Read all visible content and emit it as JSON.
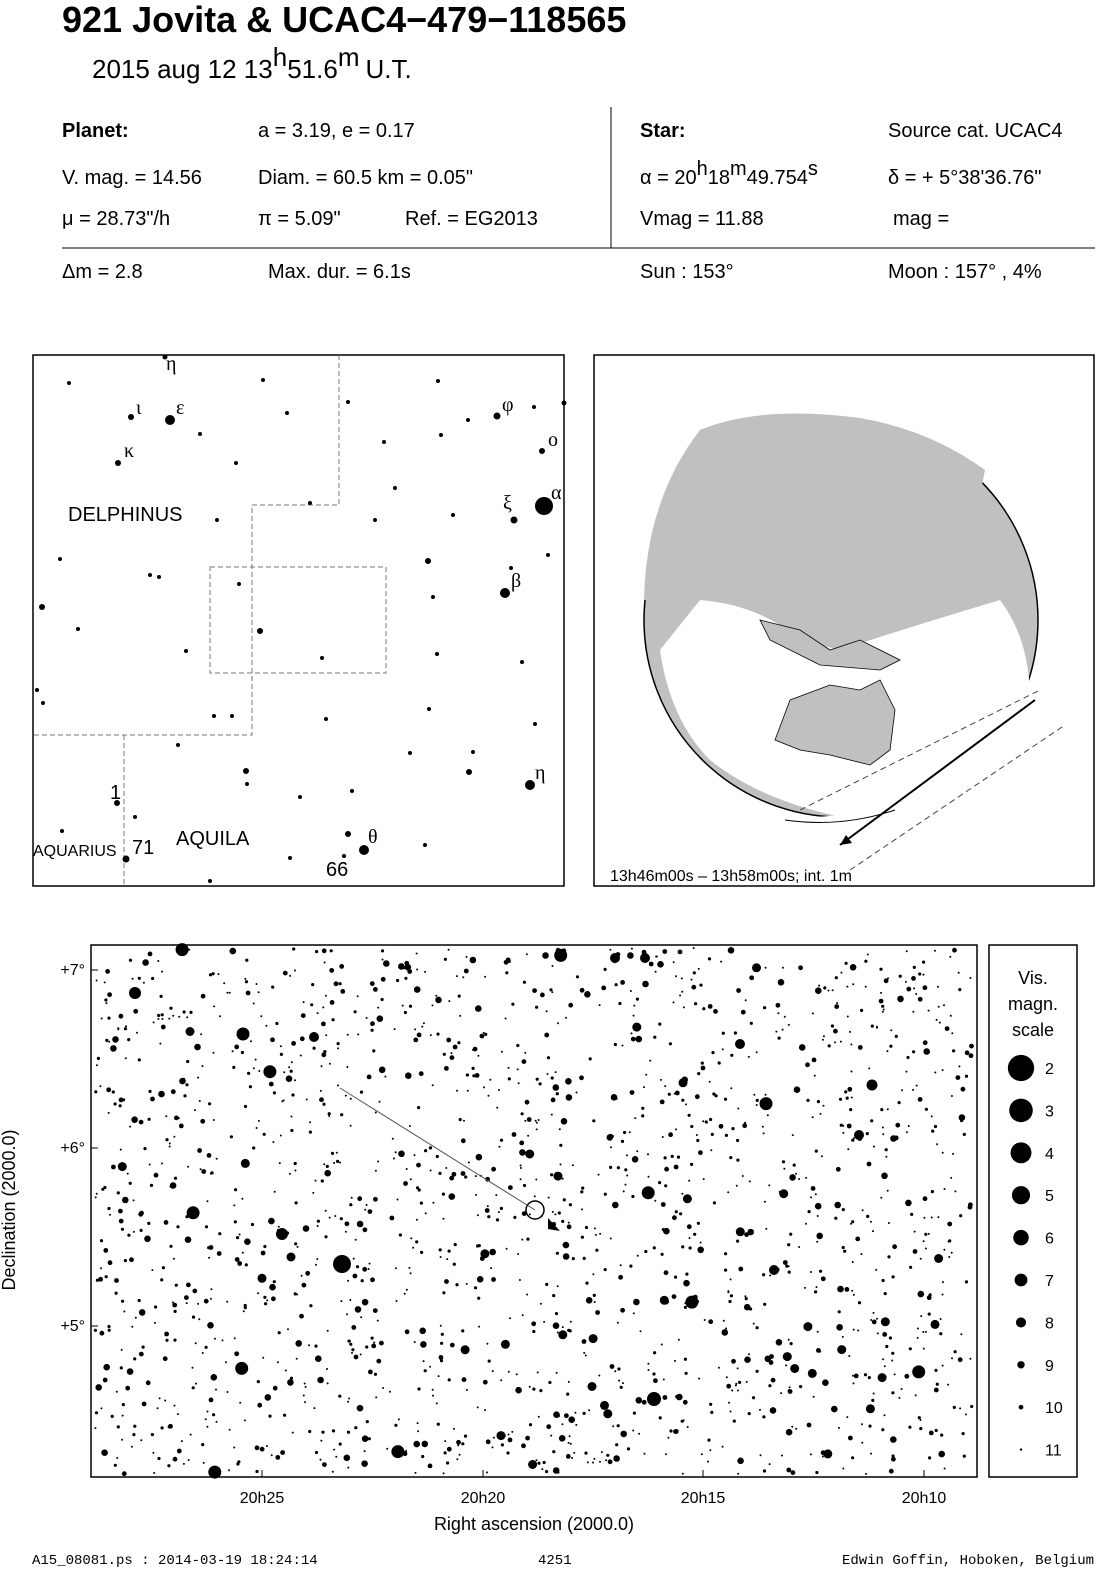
{
  "header": {
    "title": "921 Jovita  &  UCAC4−479−118565",
    "date": "2015 aug 12  13",
    "hour_unit": "h",
    "minutes": "51.6",
    "minute_unit": "m",
    "time_scale": "U.T."
  },
  "planet": {
    "label": "Planet:",
    "orbit": "a = 3.19, e = 0.17",
    "vmag": "V. mag. = 14.56",
    "diameter": "Diam. = 60.5 km = 0.05\"",
    "motion": "μ =  28.73\"/h",
    "parallax": "π =  5.09\"",
    "reference": "Ref. = EG2013"
  },
  "star": {
    "label": "Star:",
    "source": "Source cat.  UCAC4",
    "ra_hours": "α = 20",
    "ra_h_unit": "h",
    "ra_minutes": "18",
    "ra_m_unit": "m",
    "ra_seconds": "49.754",
    "ra_s_unit": "s",
    "dec": "δ = + 5°38'36.76\"",
    "vmag": "Vmag = 11.88",
    "mag": "mag ="
  },
  "event": {
    "delta_mag": "Δm = 2.8",
    "max_duration": "Max. dur. = 6.1s",
    "sun": "Sun : 153°",
    "moon": "Moon : 157° ,  4%"
  },
  "constellation_map": {
    "constellations": [
      "DELPHINUS",
      "AQUILA",
      "AQUARIUS"
    ],
    "star_labels": [
      "η",
      "ι",
      "ε",
      "κ",
      "φ",
      "ο",
      "α",
      "ξ",
      "β",
      "η",
      "θ",
      "1",
      "71",
      "66"
    ]
  },
  "globe": {
    "caption": "13h46m00s – 13h58m00s; int.  1m"
  },
  "star_chart": {
    "y_ticks": [
      "+7°",
      "+6°",
      "+5°"
    ],
    "x_ticks": [
      "20h25",
      "20h20",
      "20h15",
      "20h10"
    ],
    "x_label": "Right ascension (2000.0)",
    "y_label": "Declination (2000.0)",
    "legend": {
      "title": [
        "Vis.",
        "magn.",
        "scale"
      ],
      "magnitudes": [
        2,
        3,
        4,
        5,
        6,
        7,
        8,
        9,
        10,
        11
      ]
    }
  },
  "footer": {
    "file": "A15_08081.ps : 2014-03-19 18:24:14",
    "page": "4251",
    "author": "Edwin Goffin, Hoboken, Belgium"
  }
}
